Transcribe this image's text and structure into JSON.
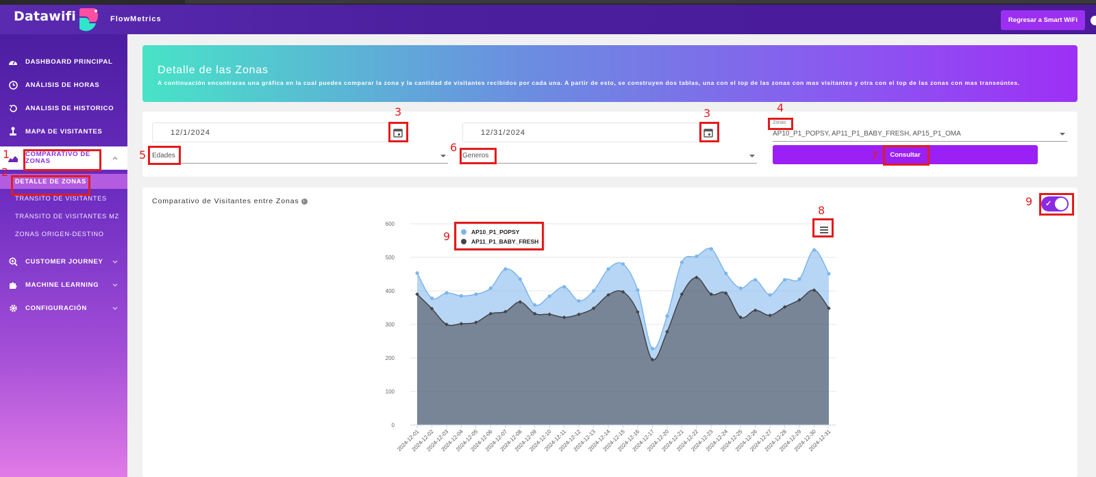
{
  "header": {
    "logo_text": "Datawifi",
    "app_name": "FlowMetrics",
    "smart_wifi_button": "Regresar a Smart WiFi"
  },
  "sidebar": {
    "items": [
      {
        "label": "DASHBOARD PRINCIPAL",
        "icon": "gauge-icon"
      },
      {
        "label": "ANÁLISIS DE HORAS",
        "icon": "clock-icon"
      },
      {
        "label": "ANALISIS DE HISTORICO",
        "icon": "history-icon"
      },
      {
        "label": "MAPA DE VISITANTES",
        "icon": "joystick-icon"
      },
      {
        "label": "COMPARATIVO DE ZONAS",
        "icon": "area-chart-icon"
      }
    ],
    "sub_items": [
      {
        "label": "DETALLE DE ZONAS"
      },
      {
        "label": "TRÁNSITO DE VISITANTES"
      },
      {
        "label": "TRÁNSITO DE VISITANTES MZ"
      },
      {
        "label": "ZONAS ORIGEN-DESTINO"
      }
    ],
    "bottom_items": [
      {
        "label": "CUSTOMER JOURNEY",
        "icon": "search-plus-icon"
      },
      {
        "label": "MACHINE LEARNING",
        "icon": "puzzle-icon"
      },
      {
        "label": "CONFIGURACIÓN",
        "icon": "gear-icon"
      }
    ]
  },
  "banner": {
    "title": "Detalle de las Zonas",
    "description": "A continuación encontraras una gráfica en la cual puedes comparar la zona y la cantidad de visitantes recibidos por cada una. A partir de esto, se construyen dos tablas, una con el top de las zonas con mas visitantes y otra con el top de las zonas con mas transeúntes."
  },
  "filters": {
    "start_date": "12/1/2024",
    "end_date": "12/31/2024",
    "zonas_label": "Zonas",
    "zonas_value": "AP10_P1_POPSY, AP11_P1_BABY_FRESH, AP15_P1_OMA",
    "edades_placeholder": "Edades",
    "generos_placeholder": "Generos",
    "consultar_button": "Consultar"
  },
  "chart_card": {
    "title": "Comparativo de Visitantes entre Zonas",
    "toggle_on": true
  },
  "annotations": [
    "1",
    "2",
    "3",
    "3",
    "4",
    "5",
    "6",
    "7",
    "8",
    "9",
    "9"
  ],
  "chart_data": {
    "type": "area",
    "x": [
      "2024-12-01",
      "2024-12-02",
      "2024-12-03",
      "2024-12-04",
      "2024-12-05",
      "2024-12-06",
      "2024-12-07",
      "2024-12-08",
      "2024-12-09",
      "2024-12-10",
      "2024-12-11",
      "2024-12-12",
      "2024-12-13",
      "2024-12-14",
      "2024-12-15",
      "2024-12-16",
      "2024-12-17",
      "2024-12-20",
      "2024-12-21",
      "2024-12-22",
      "2024-12-23",
      "2024-12-24",
      "2024-12-25",
      "2024-12-26",
      "2024-12-27",
      "2024-12-28",
      "2024-12-29",
      "2024-12-30",
      "2024-12-31"
    ],
    "series": [
      {
        "name": "AP10_P1_POPSY",
        "color": "#7cb5ec",
        "values": [
          453,
          378,
          394,
          385,
          390,
          408,
          465,
          435,
          358,
          384,
          412,
          370,
          400,
          465,
          480,
          402,
          228,
          325,
          485,
          503,
          525,
          452,
          408,
          433,
          388,
          433,
          435,
          522,
          451
        ]
      },
      {
        "name": "AP11_P1_BABY_FRESH",
        "color": "#434348",
        "values": [
          390,
          347,
          300,
          302,
          306,
          332,
          338,
          367,
          332,
          330,
          321,
          330,
          348,
          388,
          397,
          337,
          195,
          278,
          390,
          440,
          390,
          393,
          321,
          342,
          327,
          352,
          373,
          402,
          348
        ]
      }
    ],
    "ylim": [
      0,
      600
    ],
    "yticks": [
      0,
      100,
      200,
      300,
      400,
      500,
      600
    ],
    "legend_position": "top-left",
    "grid": true
  }
}
